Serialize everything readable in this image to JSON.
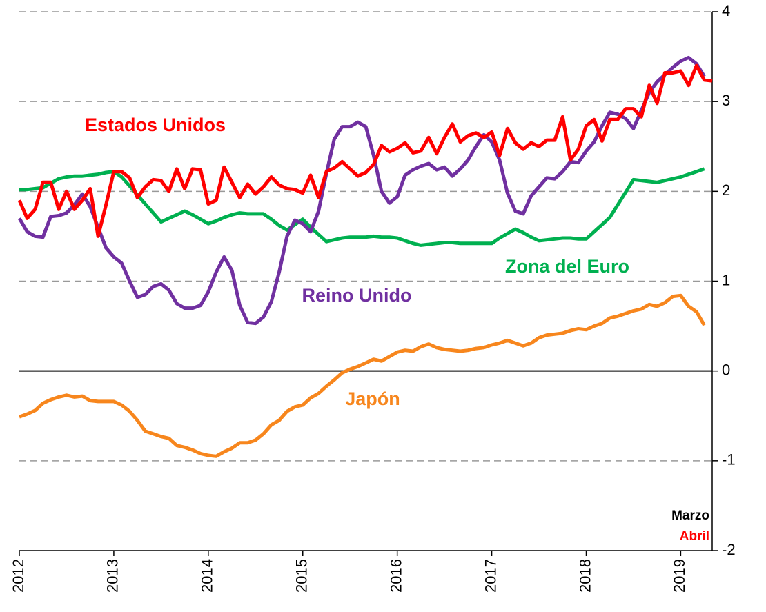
{
  "chart_data": {
    "type": "line",
    "x": [
      2012,
      2012.083,
      2012.167,
      2012.25,
      2012.333,
      2012.417,
      2012.5,
      2012.583,
      2012.667,
      2012.75,
      2012.833,
      2012.917,
      2013,
      2013.083,
      2013.167,
      2013.25,
      2013.333,
      2013.417,
      2013.5,
      2013.583,
      2013.667,
      2013.75,
      2013.833,
      2013.917,
      2014,
      2014.083,
      2014.167,
      2014.25,
      2014.333,
      2014.417,
      2014.5,
      2014.583,
      2014.667,
      2014.75,
      2014.833,
      2014.917,
      2015,
      2015.083,
      2015.167,
      2015.25,
      2015.333,
      2015.417,
      2015.5,
      2015.583,
      2015.667,
      2015.75,
      2015.833,
      2015.917,
      2016,
      2016.083,
      2016.167,
      2016.25,
      2016.333,
      2016.417,
      2016.5,
      2016.583,
      2016.667,
      2016.75,
      2016.833,
      2016.917,
      2017,
      2017.083,
      2017.167,
      2017.25,
      2017.333,
      2017.417,
      2017.5,
      2017.583,
      2017.667,
      2017.75,
      2017.833,
      2017.917,
      2018,
      2018.083,
      2018.167,
      2018.25,
      2018.333,
      2018.417,
      2018.5,
      2018.583,
      2018.667,
      2018.75,
      2018.833,
      2018.917,
      2019,
      2019.083,
      2019.167,
      2019.25,
      2019.333
    ],
    "series": [
      {
        "name": "Zona del Euro",
        "color": "#00b050",
        "values": [
          2.02,
          2.02,
          2.03,
          2.04,
          2.09,
          2.14,
          2.16,
          2.17,
          2.17,
          2.18,
          2.19,
          2.21,
          2.22,
          2.16,
          2.06,
          1.96,
          1.86,
          1.76,
          1.66,
          1.7,
          1.74,
          1.78,
          1.74,
          1.69,
          1.64,
          1.67,
          1.71,
          1.74,
          1.76,
          1.75,
          1.75,
          1.75,
          1.69,
          1.62,
          1.57,
          1.63,
          1.69,
          1.6,
          1.52,
          1.44,
          1.46,
          1.48,
          1.49,
          1.49,
          1.49,
          1.5,
          1.49,
          1.49,
          1.48,
          1.45,
          1.42,
          1.4,
          1.41,
          1.42,
          1.43,
          1.43,
          1.42,
          1.42,
          1.42,
          1.42,
          1.42,
          1.48,
          1.53,
          1.58,
          1.54,
          1.49,
          1.45,
          1.46,
          1.47,
          1.48,
          1.48,
          1.47,
          1.47,
          1.55,
          1.63,
          1.71,
          1.85,
          1.99,
          2.13,
          2.12,
          2.11,
          2.1,
          2.12,
          2.14,
          2.16,
          2.19,
          2.22,
          2.25,
          null
        ]
      },
      {
        "name": "Japón",
        "color": "#f7861d",
        "values": [
          -0.51,
          -0.48,
          -0.44,
          -0.36,
          -0.32,
          -0.29,
          -0.27,
          -0.29,
          -0.28,
          -0.33,
          -0.34,
          -0.34,
          -0.34,
          -0.38,
          -0.45,
          -0.55,
          -0.67,
          -0.7,
          -0.73,
          -0.75,
          -0.83,
          -0.85,
          -0.88,
          -0.92,
          -0.94,
          -0.95,
          -0.9,
          -0.86,
          -0.8,
          -0.8,
          -0.77,
          -0.7,
          -0.6,
          -0.55,
          -0.45,
          -0.4,
          -0.38,
          -0.3,
          -0.25,
          -0.17,
          -0.1,
          -0.02,
          0.02,
          0.05,
          0.09,
          0.13,
          0.11,
          0.16,
          0.21,
          0.23,
          0.22,
          0.27,
          0.3,
          0.26,
          0.24,
          0.23,
          0.22,
          0.23,
          0.25,
          0.26,
          0.29,
          0.31,
          0.34,
          0.31,
          0.28,
          0.31,
          0.37,
          0.4,
          0.41,
          0.42,
          0.45,
          0.47,
          0.46,
          0.5,
          0.53,
          0.59,
          0.61,
          0.64,
          0.67,
          0.69,
          0.74,
          0.72,
          0.76,
          0.83,
          0.84,
          0.72,
          0.66,
          0.51,
          null
        ]
      },
      {
        "name": "Reino Unido",
        "color": "#7030a0",
        "values": [
          1.7,
          1.55,
          1.5,
          1.49,
          1.72,
          1.73,
          1.76,
          1.85,
          1.97,
          1.83,
          1.6,
          1.37,
          1.27,
          1.2,
          1.0,
          0.82,
          0.85,
          0.94,
          0.97,
          0.9,
          0.75,
          0.7,
          0.7,
          0.73,
          0.88,
          1.1,
          1.27,
          1.12,
          0.73,
          0.54,
          0.53,
          0.6,
          0.77,
          1.1,
          1.5,
          1.68,
          1.64,
          1.55,
          1.78,
          2.2,
          2.58,
          2.72,
          2.72,
          2.77,
          2.72,
          2.4,
          2.0,
          1.87,
          1.94,
          2.18,
          2.24,
          2.28,
          2.31,
          2.24,
          2.27,
          2.17,
          2.25,
          2.35,
          2.5,
          2.63,
          2.55,
          2.35,
          1.98,
          1.78,
          1.75,
          1.95,
          2.05,
          2.15,
          2.14,
          2.22,
          2.33,
          2.32,
          2.45,
          2.55,
          2.73,
          2.88,
          2.86,
          2.81,
          2.7,
          2.9,
          3.1,
          3.22,
          3.3,
          3.38,
          3.45,
          3.49,
          3.42,
          3.28,
          null
        ]
      },
      {
        "name": "Estados Unidos",
        "color": "#ff0000",
        "values": [
          1.9,
          1.7,
          1.8,
          2.1,
          2.1,
          1.8,
          2.0,
          1.8,
          1.9,
          2.03,
          1.5,
          1.85,
          2.22,
          2.22,
          2.15,
          1.93,
          2.05,
          2.13,
          2.12,
          2.0,
          2.25,
          2.03,
          2.25,
          2.24,
          1.86,
          1.9,
          2.27,
          2.1,
          1.93,
          2.08,
          1.97,
          2.05,
          2.16,
          2.07,
          2.03,
          2.02,
          1.98,
          2.18,
          1.93,
          2.22,
          2.26,
          2.33,
          2.25,
          2.17,
          2.21,
          2.3,
          2.51,
          2.44,
          2.48,
          2.54,
          2.43,
          2.45,
          2.6,
          2.42,
          2.6,
          2.75,
          2.55,
          2.62,
          2.65,
          2.6,
          2.66,
          2.4,
          2.7,
          2.54,
          2.47,
          2.54,
          2.5,
          2.57,
          2.57,
          2.83,
          2.35,
          2.47,
          2.73,
          2.8,
          2.56,
          2.8,
          2.8,
          2.92,
          2.92,
          2.83,
          3.18,
          2.98,
          3.32,
          3.32,
          3.34,
          3.18,
          3.4,
          3.24,
          3.23
        ]
      }
    ],
    "xlim": [
      2012,
      2019.333
    ],
    "xticks": [
      2012,
      2013,
      2014,
      2015,
      2016,
      2017,
      2018,
      2019
    ],
    "ylim": [
      -2,
      4
    ],
    "yticks": [
      -2,
      -1,
      0,
      1,
      2,
      3,
      4
    ],
    "grid": true,
    "annotations": [
      {
        "text": "Marzo",
        "color": "#000000"
      },
      {
        "text": "Abril",
        "color": "#ff0000"
      }
    ]
  }
}
